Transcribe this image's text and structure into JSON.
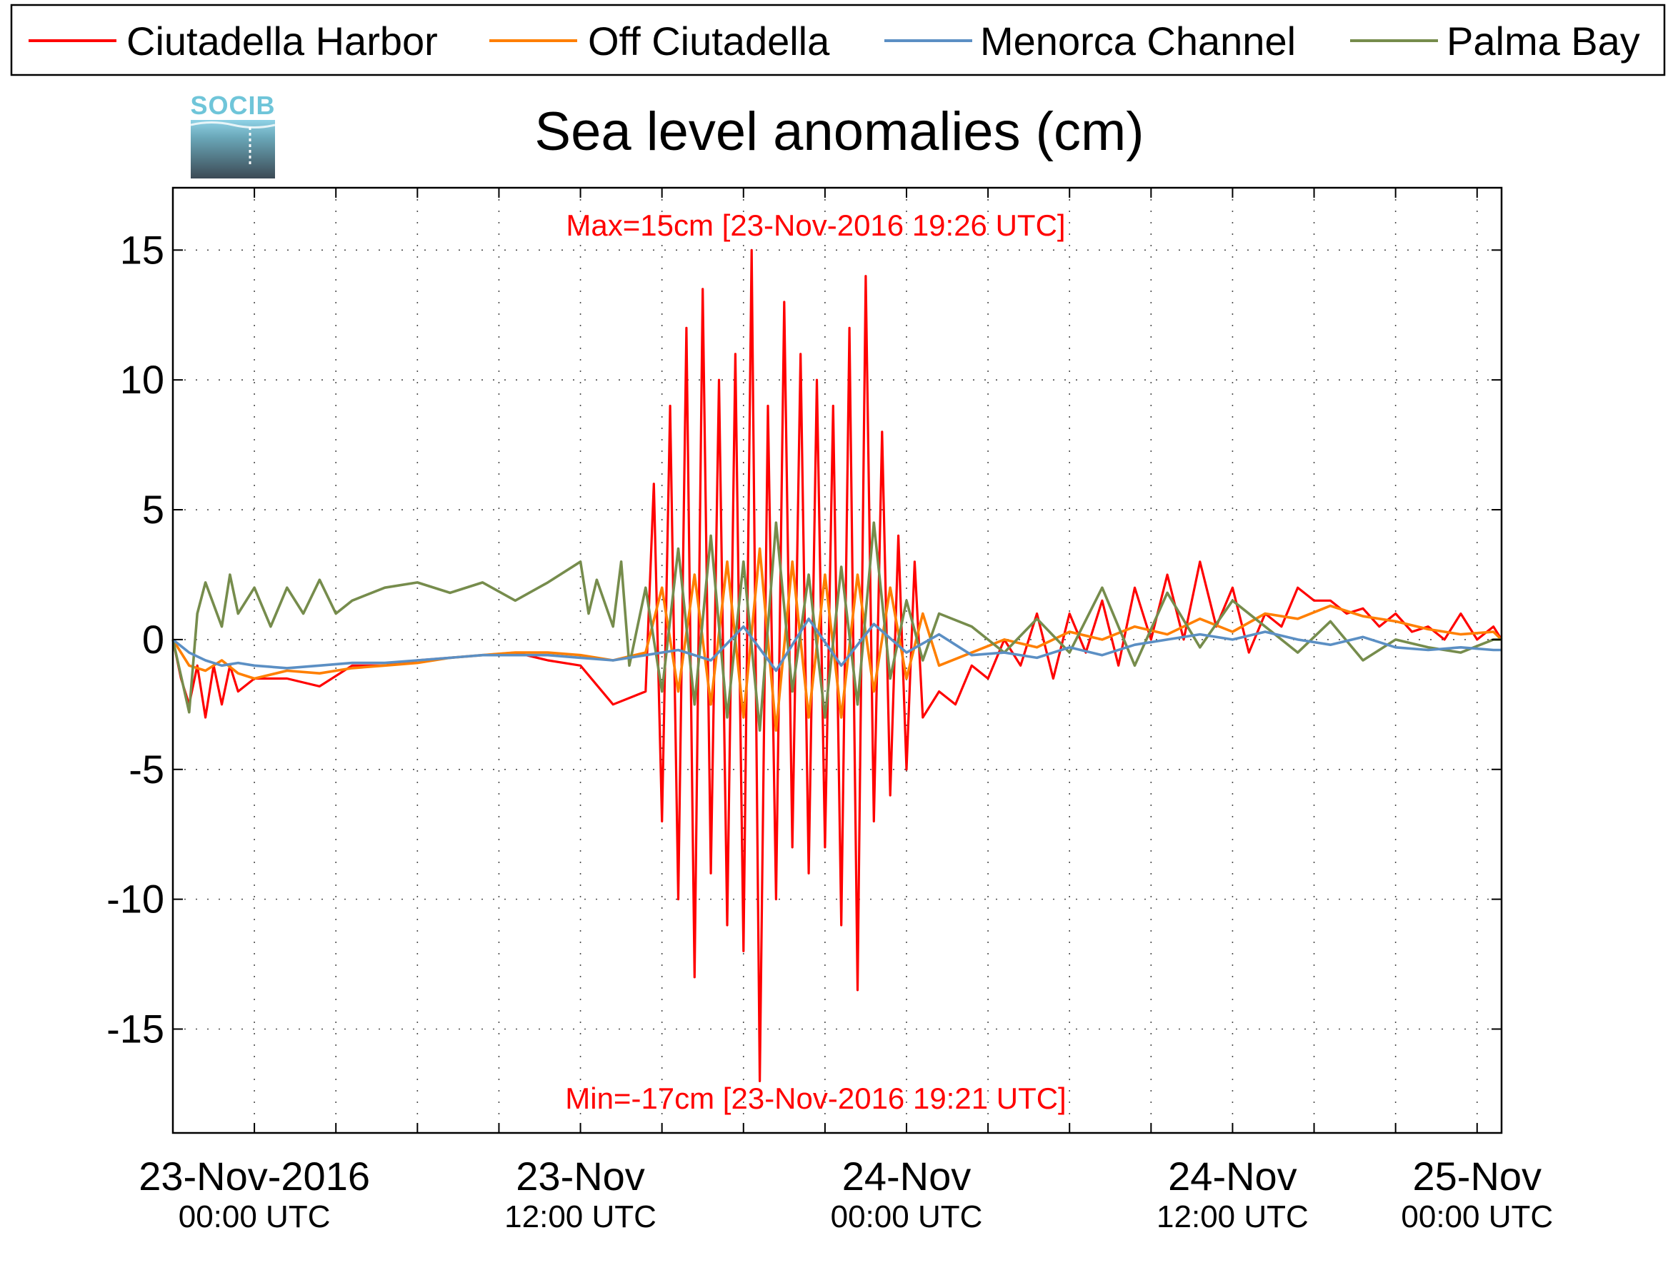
{
  "logo": {
    "text": "SOCIB"
  },
  "chart_data": {
    "type": "line",
    "title": "Sea level anomalies (cm)",
    "xlabel": "",
    "ylabel": "",
    "x_unit": "hours since 23-Nov-2016 00:00 UTC",
    "xlim": [
      -5,
      76.5
    ],
    "ylim": [
      -19,
      17.4
    ],
    "y_ticks": [
      15,
      10,
      5,
      0,
      -5,
      -10,
      -15
    ],
    "x_ticks": [
      0,
      5,
      10,
      15,
      20,
      25,
      30,
      35,
      40,
      45,
      50,
      55,
      60,
      65,
      70,
      75
    ],
    "x_tick_labels": [
      {
        "x": 0,
        "line1": "23-Nov-2016",
        "line2": "00:00 UTC"
      },
      {
        "x": 20,
        "line1": "23-Nov",
        "line2": "12:00 UTC"
      },
      {
        "x": 40,
        "line1": "24-Nov",
        "line2": "00:00 UTC"
      },
      {
        "x": 60,
        "line1": "24-Nov",
        "line2": "12:00 UTC"
      },
      {
        "x": 75,
        "line1": "25-Nov",
        "line2": "00:00 UTC"
      }
    ],
    "grid": true,
    "legend_position": "top",
    "annotations": {
      "max": "Max=15cm [23-Nov-2016 19:26 UTC]",
      "min": "Min=-17cm [23-Nov-2016 19:21 UTC]"
    },
    "series": [
      {
        "name": "Ciutadella Harbor",
        "color": "#ff0000",
        "x": [
          -5,
          -4.5,
          -4,
          -3.5,
          -3,
          -2.5,
          -2,
          -1.5,
          -1,
          0,
          2,
          4,
          6,
          8,
          10,
          12,
          14,
          16,
          18,
          20,
          22,
          24,
          24.5,
          25,
          25.5,
          26,
          26.5,
          27,
          27.5,
          28,
          28.5,
          29,
          29.5,
          30,
          30.5,
          31,
          31.5,
          32,
          32.5,
          33,
          33.5,
          34,
          34.5,
          35,
          35.5,
          36,
          36.5,
          37,
          37.5,
          38,
          38.5,
          39,
          39.5,
          40,
          40.5,
          41,
          42,
          43,
          44,
          45,
          46,
          47,
          48,
          49,
          50,
          51,
          52,
          53,
          54,
          55,
          56,
          57,
          58,
          59,
          60,
          61,
          62,
          63,
          64,
          65,
          66,
          67,
          68,
          69,
          70,
          71,
          72,
          73,
          74,
          75,
          76,
          76.5
        ],
        "y": [
          0,
          -1.5,
          -2.5,
          -1,
          -3,
          -1,
          -2.5,
          -1,
          -2,
          -1.5,
          -1.5,
          -1.8,
          -1,
          -1,
          -0.8,
          -0.7,
          -0.6,
          -0.5,
          -0.8,
          -1,
          -2.5,
          -2,
          6,
          -7,
          9,
          -10,
          12,
          -13,
          13.5,
          -9,
          10,
          -11,
          11,
          -12,
          15,
          -17,
          9,
          -10,
          13,
          -8,
          11,
          -9,
          10,
          -8,
          9,
          -11,
          12,
          -13.5,
          14,
          -7,
          8,
          -6,
          4,
          -5,
          3,
          -3,
          -2,
          -2.5,
          -1,
          -1.5,
          0,
          -1,
          1,
          -1.5,
          1,
          -0.5,
          1.5,
          -1,
          2,
          0,
          2.5,
          0,
          3,
          0.5,
          2,
          -0.5,
          1,
          0.5,
          2,
          1.5,
          1.5,
          1,
          1.2,
          0.5,
          1,
          0.3,
          0.5,
          0,
          1,
          0,
          0.5,
          0
        ]
      },
      {
        "name": "Off Ciutadella",
        "color": "#ff7f00",
        "x": [
          -5,
          -4,
          -3,
          -2,
          -1,
          0,
          2,
          4,
          6,
          8,
          10,
          12,
          14,
          16,
          18,
          20,
          22,
          24,
          25,
          26,
          27,
          28,
          29,
          30,
          31,
          32,
          33,
          34,
          35,
          36,
          37,
          38,
          39,
          40,
          41,
          42,
          44,
          46,
          48,
          50,
          52,
          54,
          56,
          58,
          60,
          62,
          64,
          66,
          68,
          70,
          72,
          74,
          76,
          76.5
        ],
        "y": [
          0,
          -1,
          -1.2,
          -0.8,
          -1.3,
          -1.5,
          -1.2,
          -1.3,
          -1.1,
          -1,
          -0.9,
          -0.7,
          -0.6,
          -0.5,
          -0.5,
          -0.6,
          -0.8,
          -0.5,
          2,
          -2,
          2.5,
          -2.5,
          3,
          -3,
          3.5,
          -3.5,
          3,
          -3,
          2.5,
          -3,
          2.5,
          -2,
          2,
          -1.5,
          1,
          -1,
          -0.5,
          0,
          -0.3,
          0.3,
          0,
          0.5,
          0.2,
          0.8,
          0.3,
          1,
          0.8,
          1.3,
          0.9,
          0.7,
          0.4,
          0.2,
          0.3,
          0
        ]
      },
      {
        "name": "Menorca Channel",
        "color": "#5b8fc4",
        "x": [
          -5,
          -4,
          -3,
          -2,
          -1,
          0,
          2,
          4,
          6,
          8,
          10,
          12,
          14,
          16,
          18,
          20,
          22,
          24,
          26,
          28,
          30,
          32,
          34,
          36,
          38,
          40,
          42,
          44,
          46,
          48,
          50,
          52,
          54,
          56,
          58,
          60,
          62,
          64,
          66,
          68,
          70,
          72,
          74,
          76,
          76.5
        ],
        "y": [
          0,
          -0.5,
          -0.8,
          -1,
          -0.9,
          -1,
          -1.1,
          -1,
          -0.9,
          -0.9,
          -0.8,
          -0.7,
          -0.6,
          -0.6,
          -0.6,
          -0.7,
          -0.8,
          -0.6,
          -0.4,
          -0.8,
          0.5,
          -1.2,
          0.8,
          -1,
          0.6,
          -0.5,
          0.2,
          -0.6,
          -0.5,
          -0.7,
          -0.3,
          -0.6,
          -0.2,
          0,
          0.2,
          0,
          0.3,
          0,
          -0.2,
          0.1,
          -0.3,
          -0.4,
          -0.3,
          -0.4,
          -0.4
        ]
      },
      {
        "name": "Palma Bay",
        "color": "#768c4c",
        "x": [
          -5,
          -4,
          -3.5,
          -3,
          -2,
          -1.5,
          -1,
          0,
          1,
          2,
          3,
          4,
          5,
          6,
          8,
          10,
          12,
          14,
          16,
          18,
          20,
          20.5,
          21,
          22,
          22.5,
          23,
          24,
          25,
          26,
          27,
          28,
          29,
          30,
          31,
          32,
          33,
          34,
          35,
          36,
          37,
          38,
          39,
          40,
          41,
          42,
          44,
          46,
          48,
          50,
          52,
          54,
          56,
          58,
          60,
          62,
          64,
          66,
          68,
          70,
          72,
          74,
          76,
          76.5
        ],
        "y": [
          0,
          -2.8,
          1,
          2.2,
          0.5,
          2.5,
          1,
          2,
          0.5,
          2,
          1,
          2.3,
          1,
          1.5,
          2,
          2.2,
          1.8,
          2.2,
          1.5,
          2.2,
          3,
          1,
          2.3,
          0.5,
          3,
          -1,
          2,
          -2,
          3.5,
          -2.5,
          4,
          -3,
          3,
          -3.5,
          4.5,
          -2,
          2.5,
          -3,
          2.8,
          -2.5,
          4.5,
          -1.5,
          1.5,
          -0.8,
          1,
          0.5,
          -0.5,
          0.8,
          -0.5,
          2,
          -1,
          1.8,
          -0.3,
          1.5,
          0.5,
          -0.5,
          0.7,
          -0.8,
          0,
          -0.3,
          -0.5,
          0,
          0
        ]
      }
    ]
  }
}
